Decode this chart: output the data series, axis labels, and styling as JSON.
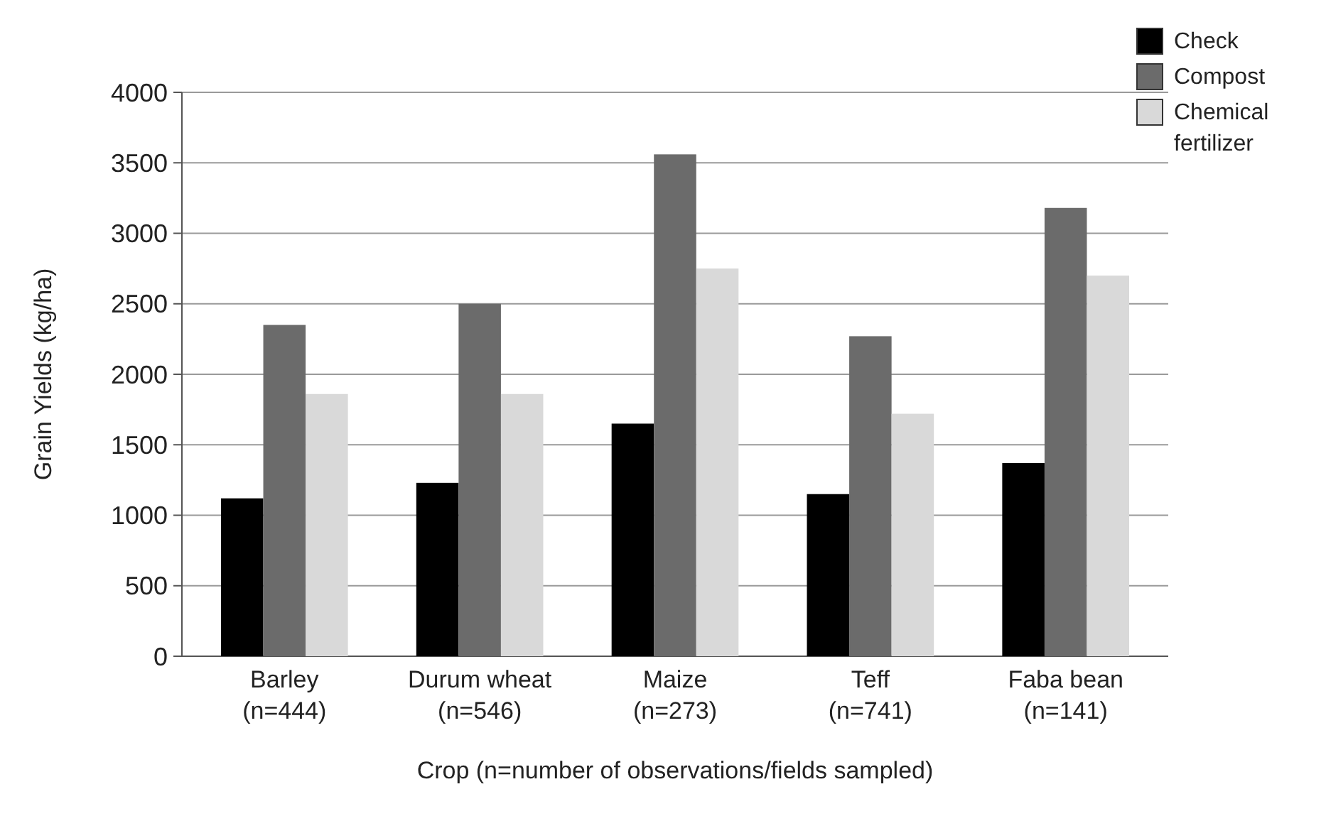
{
  "chart_data": {
    "type": "bar",
    "xlabel": "Crop (n=number of observations/fields sampled)",
    "ylabel": "Grain Yields (kg/ha)",
    "categories": [
      "Barley\n(n=444)",
      "Durum wheat\n(n=546)",
      "Maize\n(n=273)",
      "Teff\n(n=741)",
      "Faba bean\n(n=141)"
    ],
    "series": [
      {
        "name": "Check",
        "color": "#000000",
        "values": [
          1120,
          1230,
          1650,
          1150,
          1370
        ]
      },
      {
        "name": "Compost",
        "color": "#6b6b6b",
        "values": [
          2350,
          2500,
          3560,
          2270,
          3180
        ]
      },
      {
        "name": "Chemical fertilizer",
        "color": "#d9d9d9",
        "values": [
          1860,
          1860,
          2750,
          1720,
          2700
        ]
      }
    ],
    "ylim": [
      0,
      4000
    ],
    "yticks": [
      0,
      500,
      1000,
      1500,
      2000,
      2500,
      3000,
      3500,
      4000
    ],
    "grid": "y",
    "legend": "top right"
  }
}
